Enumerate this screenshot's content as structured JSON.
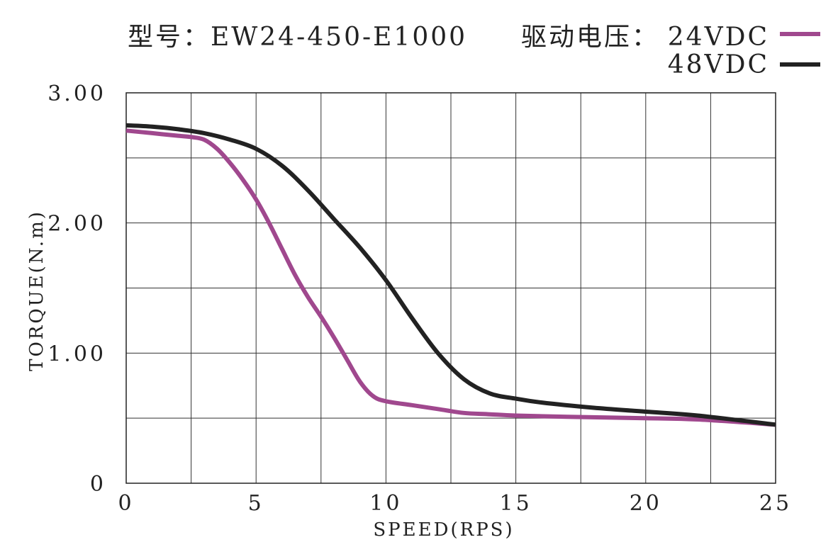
{
  "header": {
    "model_label": "型号：EW24-450-E1000",
    "voltage_label": "驱动电压："
  },
  "chart_data": {
    "type": "line",
    "title": "",
    "xlabel": "SPEED(RPS)",
    "ylabel": "TORQUE(N.m)",
    "xlim": [
      0,
      25
    ],
    "ylim": [
      0,
      3
    ],
    "x_ticks": [
      0,
      5,
      10,
      15,
      20,
      25
    ],
    "x_tick_labels": [
      "0",
      "5",
      "10",
      "15",
      "20",
      "25"
    ],
    "y_ticks": [
      0,
      1,
      2,
      3
    ],
    "y_tick_labels": [
      "0",
      "1.00",
      "2.00",
      "3.00"
    ],
    "grid": true,
    "x_grid_step": 2.5,
    "y_grid_step": 0.5,
    "legend_position": "top-right",
    "series": [
      {
        "name": "24VDC",
        "color": "#a0488e",
        "x": [
          0,
          1,
          2,
          2.5,
          3,
          3.5,
          4,
          4.5,
          5,
          5.5,
          6,
          6.5,
          7,
          7.5,
          8,
          8.5,
          9,
          9.5,
          10,
          11,
          12,
          13,
          14,
          15,
          17,
          20,
          22,
          25
        ],
        "y": [
          2.71,
          2.69,
          2.67,
          2.66,
          2.64,
          2.57,
          2.46,
          2.33,
          2.18,
          2.0,
          1.8,
          1.6,
          1.43,
          1.28,
          1.12,
          0.95,
          0.78,
          0.67,
          0.63,
          0.6,
          0.57,
          0.54,
          0.53,
          0.52,
          0.51,
          0.5,
          0.49,
          0.45
        ]
      },
      {
        "name": "48VDC",
        "color": "#222222",
        "x": [
          0,
          1,
          2,
          3,
          4,
          5,
          6,
          7,
          8,
          9,
          10,
          11,
          12,
          13,
          14,
          15,
          16,
          18,
          20,
          22,
          25
        ],
        "y": [
          2.75,
          2.74,
          2.72,
          2.69,
          2.64,
          2.57,
          2.44,
          2.25,
          2.03,
          1.81,
          1.56,
          1.27,
          1.0,
          0.8,
          0.69,
          0.65,
          0.62,
          0.58,
          0.55,
          0.52,
          0.45
        ]
      }
    ]
  }
}
